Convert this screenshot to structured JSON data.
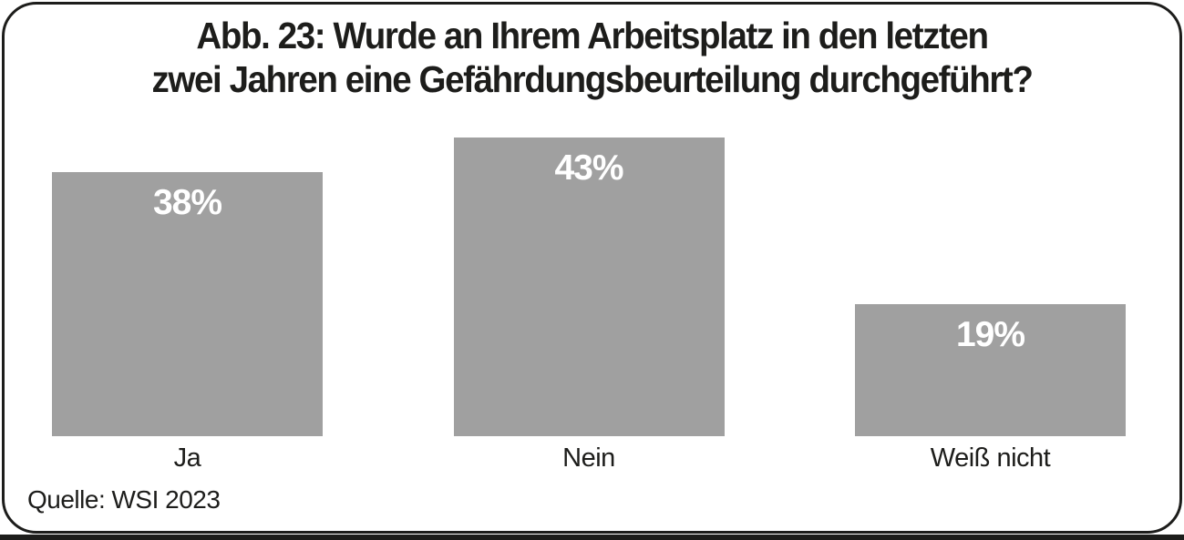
{
  "chart_data": {
    "type": "bar",
    "title": "Abb. 23: Wurde an Ihrem Arbeitsplatz in den letzten zwei Jahren eine Gefährdungsbeurteilung durchgeführt?",
    "title_lines": [
      "Abb. 23: Wurde an Ihrem Arbeitsplatz in den letzten",
      "zwei Jahren eine Gefährdungsbeurteilung durchgeführt?"
    ],
    "categories": [
      "Ja",
      "Nein",
      "Weiß nicht"
    ],
    "values": [
      38,
      43,
      19
    ],
    "value_labels": [
      "38%",
      "43%",
      "19%"
    ],
    "unit": "%",
    "source": "Quelle: WSI 2023",
    "bar_color": "#a0a0a0",
    "value_label_color": "#ffffff",
    "text_color": "#1d1d1b",
    "axes": "none",
    "grid": false,
    "legend": false,
    "value_label_position": "inside-top",
    "ylim": [
      0,
      43
    ]
  }
}
